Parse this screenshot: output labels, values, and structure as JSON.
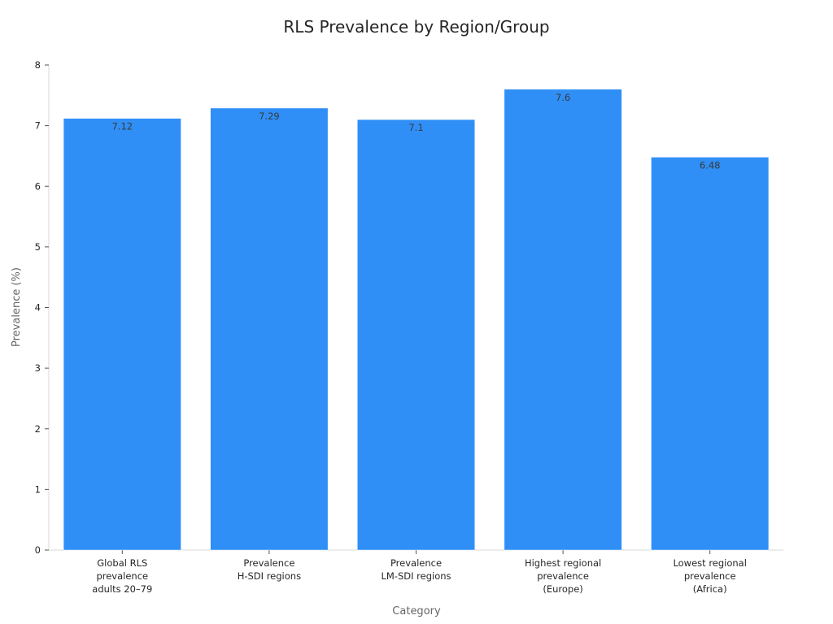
{
  "chart_data": {
    "type": "bar",
    "title": "RLS Prevalence by Region/Group",
    "xlabel": "Category",
    "ylabel": "Prevalence (%)",
    "ylim": [
      0,
      8
    ],
    "yticks": [
      "0",
      "1",
      "2",
      "3",
      "4",
      "5",
      "6",
      "7",
      "8"
    ],
    "categories": [
      [
        "Global RLS",
        "prevalence",
        "adults 20–79"
      ],
      [
        "Prevalence",
        "H-SDI regions"
      ],
      [
        "Prevalence",
        "LM-SDI regions"
      ],
      [
        "Highest regional",
        "prevalence",
        "(Europe)"
      ],
      [
        "Lowest regional",
        "prevalence",
        "(Africa)"
      ]
    ],
    "values": [
      7.12,
      7.29,
      7.1,
      7.6,
      6.48
    ],
    "data_labels": [
      "7.12",
      "7.29",
      "7.1",
      "7.6",
      "6.48"
    ],
    "bar_color": "#2f8ff7",
    "grid": false,
    "legend": "none"
  }
}
